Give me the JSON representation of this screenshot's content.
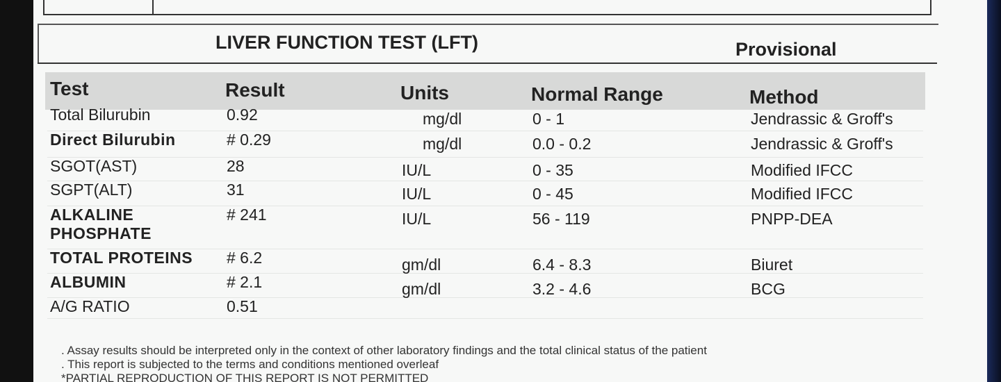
{
  "header": {
    "title": "LIVER FUNCTION TEST (LFT)",
    "status": "Provisional"
  },
  "table": {
    "columns": [
      "Test",
      "Result",
      "Units",
      "Normal Range",
      "Method"
    ],
    "rows": [
      {
        "cells": [
          "Total Bilurubin",
          "0.92",
          "mg/dl",
          "0 - 1",
          "Jendrassic & Groff's"
        ],
        "bold": false
      },
      {
        "cells": [
          "Direct Bilurubin",
          "# 0.29",
          "mg/dl",
          "0.0 - 0.2",
          "Jendrassic & Groff's"
        ],
        "bold": true
      },
      {
        "cells": [
          "SGOT(AST)",
          "28",
          "IU/L",
          "0 - 35",
          "Modified IFCC"
        ],
        "bold": false
      },
      {
        "cells": [
          "SGPT(ALT)",
          "31",
          "IU/L",
          "0 - 45",
          "Modified IFCC"
        ],
        "bold": false
      },
      {
        "cells": [
          "ALKALINE PHOSPHATE",
          "# 241",
          "IU/L",
          "56 - 119",
          "PNPP-DEA"
        ],
        "bold": true
      },
      {
        "cells": [
          "TOTAL PROTEINS",
          "# 6.2",
          "gm/dl",
          "6.4 - 8.3",
          "Biuret"
        ],
        "bold": true
      },
      {
        "cells": [
          "ALBUMIN",
          "# 2.1",
          "gm/dl",
          "3.2 - 4.6",
          "BCG"
        ],
        "bold": true
      },
      {
        "cells": [
          "A/G RATIO",
          "0.51"
        ],
        "bold": false
      }
    ]
  },
  "notes": [
    ". Assay results should be interpreted only in the context of other laboratory findings and the total clinical status of the patient",
    ". This report is subjected to the terms and conditions mentioned overleaf",
    "*PARTIAL REPRODUCTION OF THIS REPORT IS NOT PERMITTED"
  ]
}
